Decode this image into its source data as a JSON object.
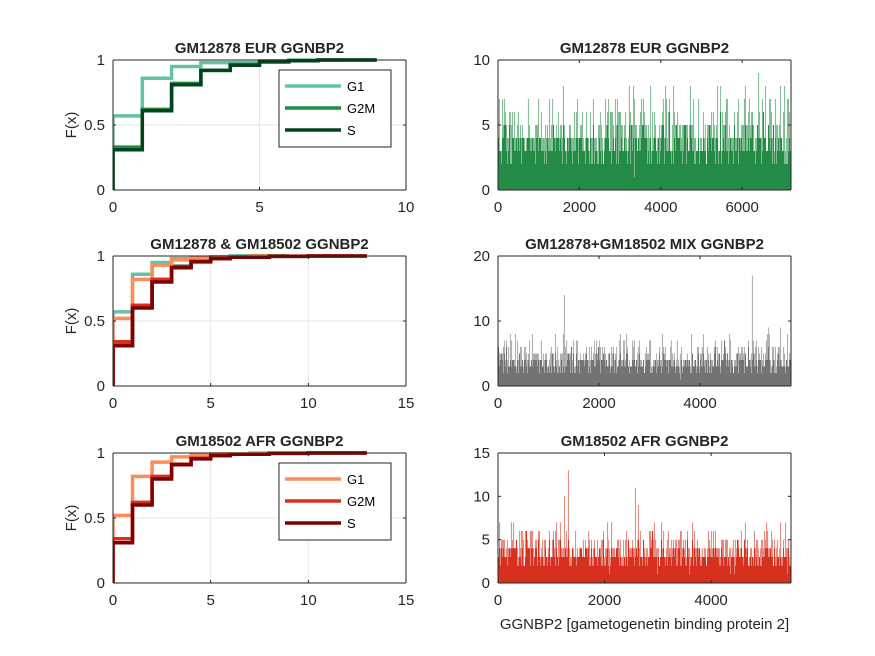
{
  "chart_data": [
    {
      "type": "line",
      "subtype": "ecdf-step",
      "title": "GM12878 EUR GGNBP2",
      "ylabel": "F(x)",
      "xlim": [
        0,
        10
      ],
      "ylim": [
        0,
        1
      ],
      "xticks": [
        0,
        5,
        10
      ],
      "yticks": [
        0,
        0.5,
        1
      ],
      "ytick_labels": [
        "0",
        "0.5",
        "1"
      ],
      "grid": true,
      "legend": "top-right",
      "series": [
        {
          "name": "G1",
          "color": "#66c2a4",
          "points": [
            [
              0,
              0
            ],
            [
              0,
              0.57
            ],
            [
              1,
              0.57
            ],
            [
              1,
              0.86
            ],
            [
              2,
              0.86
            ],
            [
              2,
              0.95
            ],
            [
              3,
              0.95
            ],
            [
              3,
              0.98
            ],
            [
              5,
              0.98
            ],
            [
              5,
              0.995
            ],
            [
              6,
              0.995
            ],
            [
              6,
              1
            ],
            [
              8,
              1
            ]
          ]
        },
        {
          "name": "G2M",
          "color": "#238b45",
          "points": [
            [
              0,
              0
            ],
            [
              0,
              0.33
            ],
            [
              1,
              0.33
            ],
            [
              1,
              0.62
            ],
            [
              2,
              0.62
            ],
            [
              2,
              0.82
            ],
            [
              3,
              0.82
            ],
            [
              3,
              0.92
            ],
            [
              4,
              0.92
            ],
            [
              4,
              0.965
            ],
            [
              5,
              0.965
            ],
            [
              5,
              0.985
            ],
            [
              6,
              0.985
            ],
            [
              6,
              0.995
            ],
            [
              7,
              0.995
            ],
            [
              7,
              1
            ],
            [
              9,
              1
            ]
          ]
        },
        {
          "name": "S",
          "color": "#00441b",
          "points": [
            [
              0,
              0
            ],
            [
              0,
              0.31
            ],
            [
              1,
              0.31
            ],
            [
              1,
              0.61
            ],
            [
              2,
              0.61
            ],
            [
              2,
              0.81
            ],
            [
              3,
              0.81
            ],
            [
              3,
              0.92
            ],
            [
              4,
              0.92
            ],
            [
              4,
              0.96
            ],
            [
              5,
              0.96
            ],
            [
              5,
              0.985
            ],
            [
              6,
              0.985
            ],
            [
              6,
              0.995
            ],
            [
              7,
              0.995
            ],
            [
              7,
              1
            ],
            [
              9,
              1
            ]
          ]
        }
      ]
    },
    {
      "type": "bar",
      "subtype": "per-cell-counts",
      "title": "GM12878 EUR GGNBP2",
      "xlim": [
        0,
        7200
      ],
      "ylim": [
        0,
        10
      ],
      "xticks": [
        0,
        2000,
        4000,
        6000
      ],
      "yticks": [
        0,
        5,
        10
      ],
      "color": "#238b45",
      "n": 7200,
      "value_distribution": {
        "0": 0.32,
        "1": 0.3,
        "2": 0.2,
        "3": 0.1,
        "4": 0.045,
        "5": 0.02,
        "6": 0.01,
        "7": 0.004,
        "8": 0.001
      },
      "max_value": 9,
      "peaks": [
        [
          6410,
          9
        ],
        [
          6,
          7
        ],
        [
          1350,
          7
        ],
        [
          3350,
          7
        ]
      ]
    },
    {
      "type": "line",
      "subtype": "ecdf-step",
      "title": "GM12878 & GM18502 GGNBP2",
      "ylabel": "F(x)",
      "xlim": [
        0,
        15
      ],
      "ylim": [
        0,
        1
      ],
      "xticks": [
        0,
        5,
        10,
        15
      ],
      "yticks": [
        0,
        0.5,
        1
      ],
      "ytick_labels": [
        "0",
        "0.5",
        "1"
      ],
      "grid": true,
      "series": [
        {
          "color": "#66c2a4",
          "points": [
            [
              0,
              0
            ],
            [
              0,
              0.57
            ],
            [
              1,
              0.57
            ],
            [
              1,
              0.86
            ],
            [
              2,
              0.86
            ],
            [
              2,
              0.95
            ],
            [
              3,
              0.95
            ],
            [
              3,
              0.98
            ],
            [
              5,
              0.98
            ],
            [
              5,
              0.995
            ],
            [
              6,
              0.995
            ],
            [
              6,
              1
            ],
            [
              8,
              1
            ]
          ]
        },
        {
          "color": "#238b45",
          "points": [
            [
              0,
              0
            ],
            [
              0,
              0.33
            ],
            [
              1,
              0.33
            ],
            [
              1,
              0.62
            ],
            [
              2,
              0.62
            ],
            [
              2,
              0.82
            ],
            [
              3,
              0.82
            ],
            [
              3,
              0.92
            ],
            [
              4,
              0.92
            ],
            [
              4,
              0.965
            ],
            [
              5,
              0.965
            ],
            [
              5,
              0.985
            ],
            [
              6,
              0.985
            ],
            [
              6,
              0.995
            ],
            [
              7,
              0.995
            ],
            [
              7,
              1
            ],
            [
              9,
              1
            ]
          ]
        },
        {
          "color": "#00441b",
          "points": [
            [
              0,
              0
            ],
            [
              0,
              0.31
            ],
            [
              1,
              0.31
            ],
            [
              1,
              0.61
            ],
            [
              2,
              0.61
            ],
            [
              2,
              0.81
            ],
            [
              3,
              0.81
            ],
            [
              3,
              0.92
            ],
            [
              4,
              0.92
            ],
            [
              4,
              0.96
            ],
            [
              5,
              0.96
            ],
            [
              5,
              0.985
            ],
            [
              6,
              0.985
            ],
            [
              6,
              0.995
            ],
            [
              7,
              0.995
            ],
            [
              7,
              1
            ],
            [
              9,
              1
            ]
          ]
        },
        {
          "color": "#fc8d59",
          "points": [
            [
              0,
              0
            ],
            [
              0,
              0.52
            ],
            [
              1,
              0.52
            ],
            [
              1,
              0.82
            ],
            [
              2,
              0.82
            ],
            [
              2,
              0.93
            ],
            [
              3,
              0.93
            ],
            [
              3,
              0.97
            ],
            [
              4,
              0.97
            ],
            [
              4,
              0.985
            ],
            [
              5,
              0.985
            ],
            [
              5,
              0.993
            ],
            [
              7,
              0.993
            ],
            [
              7,
              1
            ],
            [
              12,
              1
            ]
          ]
        },
        {
          "color": "#d7301f",
          "points": [
            [
              0,
              0
            ],
            [
              0,
              0.34
            ],
            [
              1,
              0.34
            ],
            [
              1,
              0.62
            ],
            [
              2,
              0.62
            ],
            [
              2,
              0.82
            ],
            [
              3,
              0.82
            ],
            [
              3,
              0.915
            ],
            [
              4,
              0.915
            ],
            [
              4,
              0.96
            ],
            [
              5,
              0.96
            ],
            [
              5,
              0.98
            ],
            [
              6,
              0.98
            ],
            [
              6,
              0.99
            ],
            [
              8,
              0.99
            ],
            [
              8,
              0.997
            ],
            [
              10,
              0.997
            ],
            [
              10,
              1
            ],
            [
              13,
              1
            ]
          ]
        },
        {
          "color": "#7f0000",
          "points": [
            [
              0,
              0
            ],
            [
              0,
              0.31
            ],
            [
              1,
              0.31
            ],
            [
              1,
              0.6
            ],
            [
              2,
              0.6
            ],
            [
              2,
              0.8
            ],
            [
              3,
              0.8
            ],
            [
              3,
              0.91
            ],
            [
              4,
              0.91
            ],
            [
              4,
              0.955
            ],
            [
              5,
              0.955
            ],
            [
              5,
              0.98
            ],
            [
              6,
              0.98
            ],
            [
              6,
              0.99
            ],
            [
              8,
              0.99
            ],
            [
              8,
              0.997
            ],
            [
              10,
              0.997
            ],
            [
              10,
              1
            ],
            [
              13,
              1
            ]
          ]
        }
      ]
    },
    {
      "type": "bar",
      "subtype": "per-cell-counts",
      "title": "GM12878+GM18502 MIX GGNBP2",
      "xlim": [
        0,
        5800
      ],
      "ylim": [
        0,
        20
      ],
      "xticks": [
        0,
        2000,
        4000
      ],
      "yticks": [
        0,
        10,
        20
      ],
      "color": "#737373",
      "n": 5800,
      "value_distribution": {
        "0": 0.32,
        "1": 0.29,
        "2": 0.2,
        "3": 0.1,
        "4": 0.05,
        "5": 0.022,
        "6": 0.01,
        "7": 0.005,
        "8": 0.003
      },
      "max_value": 17,
      "peaks": [
        [
          5030,
          17
        ],
        [
          1310,
          14
        ],
        [
          5360,
          9
        ],
        [
          5600,
          9
        ],
        [
          4960,
          7
        ],
        [
          3200,
          6
        ]
      ]
    },
    {
      "type": "line",
      "subtype": "ecdf-step",
      "title": "GM18502 AFR GGNBP2",
      "ylabel": "F(x)",
      "xlim": [
        0,
        15
      ],
      "ylim": [
        0,
        1
      ],
      "xticks": [
        0,
        5,
        10,
        15
      ],
      "yticks": [
        0,
        0.5,
        1
      ],
      "ytick_labels": [
        "0",
        "0.5",
        "1"
      ],
      "grid": true,
      "legend": "top-right",
      "series": [
        {
          "name": "G1",
          "color": "#fc8d59",
          "points": [
            [
              0,
              0
            ],
            [
              0,
              0.52
            ],
            [
              1,
              0.52
            ],
            [
              1,
              0.82
            ],
            [
              2,
              0.82
            ],
            [
              2,
              0.93
            ],
            [
              3,
              0.93
            ],
            [
              3,
              0.97
            ],
            [
              4,
              0.97
            ],
            [
              4,
              0.985
            ],
            [
              5,
              0.985
            ],
            [
              5,
              0.993
            ],
            [
              7,
              0.993
            ],
            [
              7,
              1
            ],
            [
              12,
              1
            ]
          ]
        },
        {
          "name": "G2M",
          "color": "#d7301f",
          "points": [
            [
              0,
              0
            ],
            [
              0,
              0.34
            ],
            [
              1,
              0.34
            ],
            [
              1,
              0.62
            ],
            [
              2,
              0.62
            ],
            [
              2,
              0.82
            ],
            [
              3,
              0.82
            ],
            [
              3,
              0.915
            ],
            [
              4,
              0.915
            ],
            [
              4,
              0.96
            ],
            [
              5,
              0.96
            ],
            [
              5,
              0.98
            ],
            [
              6,
              0.98
            ],
            [
              6,
              0.99
            ],
            [
              8,
              0.99
            ],
            [
              8,
              0.997
            ],
            [
              10,
              0.997
            ],
            [
              10,
              1
            ],
            [
              13,
              1
            ]
          ]
        },
        {
          "name": "S",
          "color": "#7f0000",
          "points": [
            [
              0,
              0
            ],
            [
              0,
              0.31
            ],
            [
              1,
              0.31
            ],
            [
              1,
              0.6
            ],
            [
              2,
              0.6
            ],
            [
              2,
              0.8
            ],
            [
              3,
              0.8
            ],
            [
              3,
              0.91
            ],
            [
              4,
              0.91
            ],
            [
              4,
              0.955
            ],
            [
              5,
              0.955
            ],
            [
              5,
              0.98
            ],
            [
              6,
              0.98
            ],
            [
              6,
              0.99
            ],
            [
              8,
              0.99
            ],
            [
              8,
              0.997
            ],
            [
              10,
              0.997
            ],
            [
              10,
              1
            ],
            [
              13,
              1
            ]
          ]
        }
      ]
    },
    {
      "type": "bar",
      "subtype": "per-cell-counts",
      "title": "GM18502 AFR GGNBP2",
      "xlabel": "GGNBP2 [gametogenetin binding protein 2]",
      "xlim": [
        0,
        5500
      ],
      "ylim": [
        0,
        15
      ],
      "xticks": [
        0,
        2000,
        4000
      ],
      "yticks": [
        0,
        5,
        10,
        15
      ],
      "color": "#d7301f",
      "n": 5500,
      "value_distribution": {
        "0": 0.3,
        "1": 0.3,
        "2": 0.21,
        "3": 0.11,
        "4": 0.05,
        "5": 0.02,
        "6": 0.008,
        "7": 0.002
      },
      "max_value": 13,
      "peaks": [
        [
          1320,
          13
        ],
        [
          2580,
          11
        ],
        [
          1250,
          10
        ],
        [
          2630,
          9
        ],
        [
          4640,
          7
        ],
        [
          3070,
          7
        ],
        [
          4050,
          6
        ]
      ]
    }
  ]
}
